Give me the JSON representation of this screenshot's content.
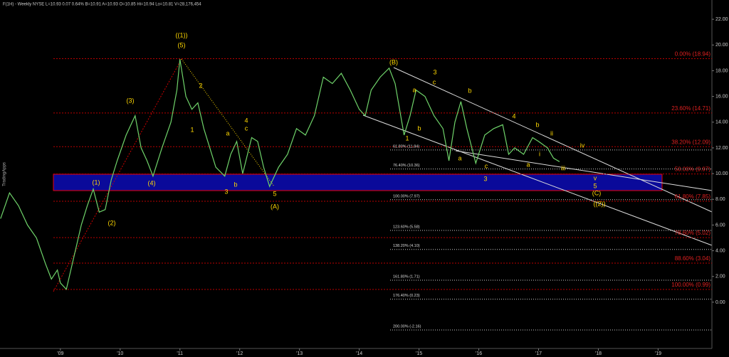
{
  "chart_data": {
    "type": "line",
    "title": "F(1H) - Weekly  NYSE  L=10.93  0.07  0.64%  B=10.91  A=10.93  O=10.85  Hi=10.94  Lo=10.81  V=28,176,454",
    "side_label": "TradingApps",
    "x": [
      2008.0,
      2008.15,
      2008.3,
      2008.45,
      2008.6,
      2008.75,
      2008.85,
      2008.95,
      2009.0,
      2009.1,
      2009.15,
      2009.25,
      2009.35,
      2009.45,
      2009.55,
      2009.65,
      2009.75,
      2009.85,
      2009.95,
      2010.1,
      2010.25,
      2010.35,
      2010.45,
      2010.55,
      2010.7,
      2010.85,
      2010.95,
      2011.0,
      2011.1,
      2011.2,
      2011.3,
      2011.4,
      2011.5,
      2011.6,
      2011.75,
      2011.85,
      2011.95,
      2012.05,
      2012.2,
      2012.3,
      2012.4,
      2012.5,
      2012.65,
      2012.8,
      2012.95,
      2013.1,
      2013.25,
      2013.4,
      2013.55,
      2013.7,
      2013.85,
      2014.0,
      2014.1,
      2014.2,
      2014.35,
      2014.5,
      2014.6,
      2014.75,
      2014.85,
      2014.95,
      2015.1,
      2015.25,
      2015.4,
      2015.5,
      2015.6,
      2015.7,
      2015.8,
      2015.95,
      2016.1,
      2016.25,
      2016.4,
      2016.5,
      2016.6,
      2016.75,
      2016.9,
      2017.0,
      2017.15,
      2017.25,
      2017.35
    ],
    "series": [
      {
        "name": "F",
        "color": "#6fd36a",
        "values": [
          6.5,
          8.5,
          7.5,
          6.0,
          5.0,
          3.0,
          1.8,
          2.5,
          1.5,
          1.0,
          2.0,
          4.0,
          6.0,
          7.5,
          8.8,
          7.0,
          7.2,
          9.5,
          11,
          13,
          14.5,
          12,
          11,
          9.8,
          12,
          14,
          16.5,
          18.9,
          16,
          15,
          15.5,
          13.5,
          12,
          10.5,
          9.8,
          11.5,
          12.5,
          10.0,
          12.8,
          12.5,
          10.5,
          9.0,
          10.5,
          11.5,
          13.5,
          13,
          14.5,
          17.5,
          17,
          17.8,
          16.5,
          15,
          14.5,
          16.5,
          17.5,
          18.2,
          17,
          13,
          14.5,
          16.5,
          16,
          14.5,
          13.5,
          11,
          14,
          15.6,
          13.5,
          10.8,
          13,
          13.5,
          13.8,
          11.5,
          12,
          11.5,
          12.8,
          12.5,
          12.0,
          11.2,
          10.93
        ]
      }
    ],
    "xlim": [
      2007.99,
      2019.9
    ],
    "xticks": [
      {
        "value": 2009,
        "label": "'09"
      },
      {
        "value": 2010,
        "label": "'10"
      },
      {
        "value": 2011,
        "label": "'11"
      },
      {
        "value": 2012,
        "label": "'12"
      },
      {
        "value": 2013,
        "label": "'13"
      },
      {
        "value": 2014,
        "label": "'14"
      },
      {
        "value": 2015,
        "label": "'15"
      },
      {
        "value": 2016,
        "label": "'16"
      },
      {
        "value": 2017,
        "label": "'17"
      },
      {
        "value": 2018,
        "label": "'18"
      },
      {
        "value": 2019,
        "label": "'19"
      }
    ],
    "ylim": [
      -3.6,
      23.5
    ],
    "yticks": [
      {
        "value": 0,
        "label": "0.00"
      },
      {
        "value": 2,
        "label": "2.00"
      },
      {
        "value": 4,
        "label": "4.00"
      },
      {
        "value": 6,
        "label": "6.00"
      },
      {
        "value": 8,
        "label": "8.00"
      },
      {
        "value": 10,
        "label": "10.00"
      },
      {
        "value": 12,
        "label": "12.00"
      },
      {
        "value": 14,
        "label": "14.00"
      },
      {
        "value": 16,
        "label": "16.00"
      },
      {
        "value": 18,
        "label": "18.00"
      },
      {
        "value": 20,
        "label": "20.00"
      },
      {
        "value": 22,
        "label": "22.00"
      }
    ],
    "retracement_levels": [
      {
        "value": 18.94,
        "label": "0.00% (18.94)"
      },
      {
        "value": 14.71,
        "label": "23.60% (14.71)"
      },
      {
        "value": 12.09,
        "label": "38.20% (12.09)"
      },
      {
        "value": 9.97,
        "label": "50.00% (9.97)"
      },
      {
        "value": 7.85,
        "label": "61.80% (7.85)"
      },
      {
        "value": 5.02,
        "label": "78.60% (5.02)"
      },
      {
        "value": 3.04,
        "label": "88.60% (3.04)"
      },
      {
        "value": 0.99,
        "label": "100.00% (0.99)"
      }
    ],
    "extension_levels": [
      {
        "value": 11.84,
        "label": "61.80% (11.84)"
      },
      {
        "value": 10.36,
        "label": "76.40% (10.36)"
      },
      {
        "value": 7.97,
        "label": "100.00% (7.97)"
      },
      {
        "value": 5.58,
        "label": "123.60% (5.58)"
      },
      {
        "value": 4.1,
        "label": "138.20% (4.10)"
      },
      {
        "value": 1.71,
        "label": "161.80% (1.71)"
      },
      {
        "value": 0.23,
        "label": "176.40% (0.23)"
      },
      {
        "value": -2.16,
        "label": "200.00% (-2.16)"
      }
    ],
    "annotations": [
      "((1))",
      "(5)",
      "(3)",
      "(1)",
      "(2)",
      "(4)",
      "2",
      "1",
      "a",
      "4",
      "c",
      "3",
      "b",
      "5",
      "(A)",
      "(B)",
      "3",
      "a",
      "c",
      "b",
      "1",
      "b",
      "a",
      "c",
      "3",
      "4",
      "b",
      "ii",
      "a",
      "i",
      "iii",
      "iv",
      "v",
      "5",
      "(C)",
      "((2))"
    ]
  }
}
